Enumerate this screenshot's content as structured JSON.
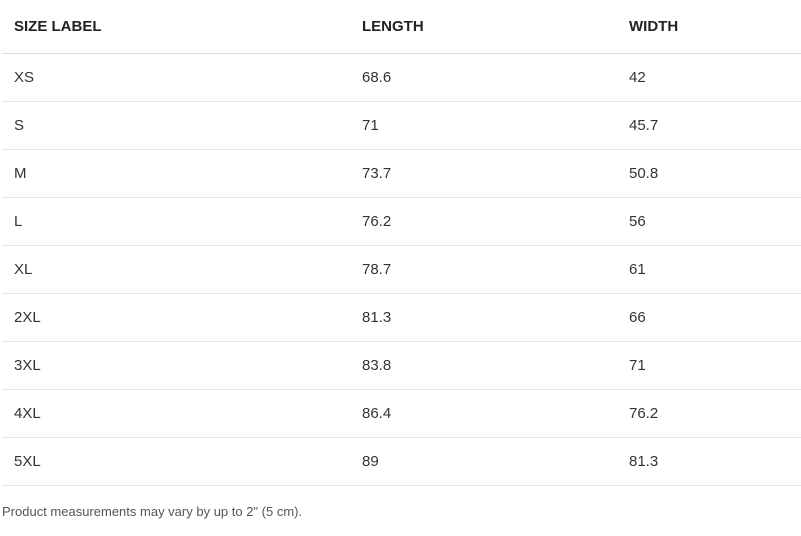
{
  "table": {
    "headers": {
      "size": "SIZE LABEL",
      "length": "LENGTH",
      "width": "WIDTH"
    },
    "rows": [
      {
        "size": "XS",
        "length": "68.6",
        "width": "42"
      },
      {
        "size": "S",
        "length": "71",
        "width": "45.7"
      },
      {
        "size": "M",
        "length": "73.7",
        "width": "50.8"
      },
      {
        "size": "L",
        "length": "76.2",
        "width": "56"
      },
      {
        "size": "XL",
        "length": "78.7",
        "width": "61"
      },
      {
        "size": "2XL",
        "length": "81.3",
        "width": "66"
      },
      {
        "size": "3XL",
        "length": "83.8",
        "width": "71"
      },
      {
        "size": "4XL",
        "length": "86.4",
        "width": "76.2"
      },
      {
        "size": "5XL",
        "length": "89",
        "width": "81.3"
      }
    ]
  },
  "footnote": "Product measurements may vary by up to 2\" (5 cm)."
}
